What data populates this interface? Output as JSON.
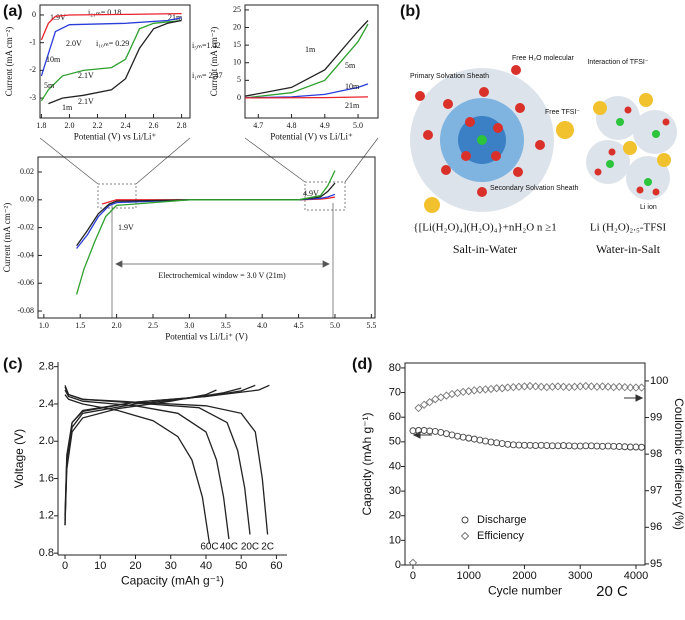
{
  "panel_labels": [
    "(a)",
    "(b)",
    "(c)",
    "(d)"
  ],
  "chart_data": [
    {
      "type": "line",
      "xlabel": "Potential (V) vs Li/Li⁺",
      "ylabel": "Current (mA cm⁻²)",
      "xlim": [
        1.79,
        2.86
      ],
      "ylim": [
        -3.72,
        0.36
      ],
      "xticks": [
        1.8,
        {
          "value": 2,
          "label": "2.0"
        },
        2.2,
        2.4,
        2.6,
        2.8
      ],
      "yticks": [
        0,
        -1,
        -2,
        -3
      ],
      "annotations": [
        "i₂₁ₘ= 0.18",
        "1.9V",
        "2.0V",
        "i₁₀ₘ= 0.29",
        "2.1V",
        "2.1V",
        "i₅ₘ=1.42",
        "i₁ₘ= 2.47"
      ],
      "series": [
        {
          "name": "21m",
          "color": "#e8212a",
          "x": [
            1.8,
            1.85,
            1.9,
            2.0,
            2.4,
            2.8
          ],
          "values": [
            -0.9,
            -0.3,
            -0.05,
            0.0,
            0.02,
            0.05
          ]
        },
        {
          "name": "10m",
          "color": "#2a3cd8",
          "x": [
            1.8,
            1.85,
            1.9,
            2.0,
            2.4,
            2.7,
            2.8
          ],
          "values": [
            -2.2,
            -1.4,
            -0.6,
            -0.35,
            -0.3,
            -0.2,
            -0.1
          ]
        },
        {
          "name": "5m",
          "color": "#2ea02e",
          "x": [
            1.8,
            1.85,
            1.95,
            2.1,
            2.3,
            2.4,
            2.5,
            2.6,
            2.8
          ],
          "values": [
            -3.1,
            -2.7,
            -2.2,
            -2.0,
            -1.9,
            -1.6,
            -0.5,
            -0.3,
            -0.2
          ]
        },
        {
          "name": "1m",
          "color": "#222222",
          "x": [
            1.85,
            1.95,
            2.1,
            2.3,
            2.4,
            2.5,
            2.6,
            2.7,
            2.8
          ],
          "values": [
            -3.2,
            -3.0,
            -2.9,
            -2.7,
            -2.3,
            -1.2,
            -0.5,
            -0.3,
            -0.2
          ]
        }
      ]
    },
    {
      "type": "line",
      "xlabel": "Potential (V) vs Li/Li⁺",
      "ylabel": "Current (mA cm⁻²)",
      "xlim": [
        4.66,
        5.06
      ],
      "ylim": [
        -5.7,
        26.4
      ],
      "xticks": [
        4.7,
        4.8,
        4.9,
        {
          "value": 5,
          "label": "5.0"
        }
      ],
      "yticks": [
        0,
        5,
        10,
        15,
        20,
        25
      ],
      "series": [
        {
          "name": "1m",
          "color": "#222222",
          "x": [
            4.66,
            4.8,
            4.9,
            5.0,
            5.03
          ],
          "values": [
            0.5,
            3,
            8,
            19,
            22
          ]
        },
        {
          "name": "5m",
          "color": "#2ea02e",
          "x": [
            4.66,
            4.8,
            4.9,
            5.0,
            5.03
          ],
          "values": [
            0,
            1.5,
            5,
            16,
            21
          ]
        },
        {
          "name": "10m",
          "color": "#2a3cd8",
          "x": [
            4.66,
            4.8,
            4.9,
            5.0,
            5.03
          ],
          "values": [
            0,
            0.3,
            1,
            3,
            4
          ]
        },
        {
          "name": "21m",
          "color": "#e8212a",
          "x": [
            4.66,
            4.9,
            5.03
          ],
          "values": [
            0,
            0.1,
            0.3
          ]
        }
      ]
    },
    {
      "type": "line",
      "xlabel": "Potential vs Li/Li⁺ (V)",
      "ylabel": "Current (mA cm⁻²)",
      "xlim": [
        0.92,
        5.55
      ],
      "ylim": [
        -0.085,
        0.0308
      ],
      "xticks": [
        {
          "value": 1,
          "label": "1.0"
        },
        1.5,
        {
          "value": 2,
          "label": "2.0"
        },
        2.5,
        {
          "value": 3,
          "label": "3.0"
        },
        3.5,
        {
          "value": 4,
          "label": "4.0"
        },
        4.5,
        {
          "value": 5,
          "label": "5.0"
        },
        5.5
      ],
      "yticks": [
        0.02,
        {
          "value": 0,
          "label": "0.00"
        },
        -0.02,
        -0.04,
        -0.06,
        -0.08
      ],
      "annotations": [
        "1.9V",
        "4.9V",
        "Electrochemical window = 3.0 V (21m)"
      ],
      "series": [
        {
          "color": "#e8212a",
          "x": [
            1.8,
            2.0,
            3,
            4,
            4.5,
            4.8,
            4.9,
            5.0
          ],
          "values": [
            -0.003,
            0,
            0,
            0,
            0,
            0.0005,
            0.001,
            0.002
          ]
        },
        {
          "color": "#2a3cd8",
          "x": [
            1.45,
            1.6,
            1.75,
            1.9,
            2.0,
            3,
            4,
            4.5,
            4.8,
            4.9,
            5.0
          ],
          "values": [
            -0.035,
            -0.025,
            -0.012,
            -0.004,
            -0.002,
            0,
            0,
            0,
            0.001,
            0.002,
            0.004
          ]
        },
        {
          "color": "#222222",
          "x": [
            1.45,
            1.6,
            1.75,
            1.9,
            2.0,
            3,
            4,
            4.5,
            4.8,
            4.9,
            5.0
          ],
          "values": [
            -0.033,
            -0.022,
            -0.01,
            -0.003,
            -0.001,
            0,
            0,
            0,
            0.002,
            0.006,
            0.012
          ]
        },
        {
          "color": "#2ea02e",
          "x": [
            1.45,
            1.55,
            1.7,
            1.85,
            2.0,
            3,
            4,
            4.5,
            4.8,
            4.9,
            5.0
          ],
          "values": [
            -0.068,
            -0.05,
            -0.03,
            -0.012,
            -0.004,
            0,
            0,
            0,
            0.003,
            0.01,
            0.021
          ]
        }
      ]
    },
    {
      "type": "line",
      "xlabel": "Capacity (mAh g⁻¹)",
      "ylabel": "Voltage (V)",
      "xlim": [
        -2,
        63
      ],
      "ylim": [
        0.78,
        2.85
      ],
      "xticks": [
        0,
        10,
        20,
        30,
        40,
        50,
        60
      ],
      "yticks": [
        0.8,
        1.2,
        1.6,
        {
          "value": 2,
          "label": "2.0"
        },
        2.4,
        2.8
      ],
      "series": [
        {
          "name": "60C",
          "color": "#222222",
          "x": [
            0,
            1,
            5,
            15,
            25,
            32,
            36,
            39,
            41
          ],
          "values": [
            2.5,
            2.45,
            2.4,
            2.33,
            2.22,
            2.05,
            1.8,
            1.4,
            0.9
          ]
        },
        {
          "name": "40C",
          "color": "#222222",
          "x": [
            0,
            1,
            5,
            20,
            32,
            40,
            43,
            45,
            46.5
          ],
          "values": [
            2.55,
            2.48,
            2.43,
            2.38,
            2.3,
            2.1,
            1.8,
            1.4,
            0.95
          ]
        },
        {
          "name": "20C",
          "color": "#222222",
          "x": [
            0,
            1,
            5,
            20,
            38,
            46,
            49,
            51,
            52.5
          ],
          "values": [
            2.58,
            2.5,
            2.45,
            2.41,
            2.36,
            2.2,
            1.9,
            1.5,
            1.0
          ]
        },
        {
          "name": "2C",
          "color": "#222222",
          "x": [
            0,
            1,
            5,
            20,
            40,
            50,
            54,
            56,
            57.5
          ],
          "values": [
            2.6,
            2.5,
            2.45,
            2.42,
            2.38,
            2.3,
            2.1,
            1.6,
            1.0
          ]
        },
        {
          "color": "#222222",
          "x": [
            0,
            0.5,
            2,
            5,
            15,
            30,
            40,
            43
          ],
          "values": [
            1.1,
            1.7,
            2.1,
            2.25,
            2.35,
            2.43,
            2.5,
            2.55
          ]
        },
        {
          "color": "#222222",
          "x": [
            0,
            0.5,
            2,
            5,
            20,
            35,
            45,
            50
          ],
          "values": [
            1.15,
            1.8,
            2.15,
            2.3,
            2.4,
            2.46,
            2.52,
            2.57
          ]
        },
        {
          "color": "#222222",
          "x": [
            0,
            0.5,
            2,
            5,
            20,
            40,
            50,
            54
          ],
          "values": [
            1.2,
            1.85,
            2.2,
            2.32,
            2.42,
            2.48,
            2.54,
            2.6
          ]
        },
        {
          "color": "#222222",
          "x": [
            0,
            0.5,
            2,
            5,
            20,
            40,
            55,
            58
          ],
          "values": [
            1.1,
            1.8,
            2.2,
            2.33,
            2.42,
            2.48,
            2.55,
            2.6
          ]
        }
      ]
    },
    {
      "type": "scatter",
      "xlabel": "Cycle number",
      "ylabel": "Capacity (mAh g⁻¹)",
      "y2label": "Coulombic efficiency (%)",
      "xlim": [
        -143,
        4162
      ],
      "ylim": [
        0,
        82
      ],
      "y2lim": [
        94.97,
        100.49
      ],
      "xticks": [
        0,
        1000,
        2000,
        3000,
        4000
      ],
      "yticks": [
        0,
        10,
        20,
        30,
        40,
        50,
        60,
        70,
        80
      ],
      "y2ticks": [
        95,
        96,
        97,
        98,
        99,
        100
      ],
      "annotations": [
        "20 C"
      ],
      "legend": "lower center",
      "x": [
        0,
        100,
        200,
        300,
        400,
        500,
        600,
        700,
        800,
        900,
        1000,
        1100,
        1200,
        1300,
        1400,
        1500,
        1600,
        1700,
        1800,
        1900,
        2000,
        2100,
        2200,
        2300,
        2400,
        2500,
        2600,
        2700,
        2800,
        2900,
        3000,
        3100,
        3200,
        3300,
        3400,
        3500,
        3600,
        3700,
        3800,
        3900,
        4000,
        4100
      ],
      "series": [
        {
          "name": "Discharge",
          "color": "#444444",
          "marker": "circle",
          "values": [
            54.5,
            54.6,
            54.6,
            54.4,
            54.2,
            53.8,
            53.3,
            52.8,
            52.3,
            51.9,
            51.5,
            51.1,
            50.7,
            50.3,
            49.9,
            49.6,
            49.3,
            49.0,
            48.8,
            48.7,
            48.6,
            48.6,
            48.5,
            48.6,
            48.5,
            48.4,
            48.4,
            48.5,
            48.4,
            48.3,
            48.3,
            48.4,
            48.4,
            48.3,
            48.2,
            48.3,
            48.2,
            48.1,
            48.0,
            47.9,
            47.9,
            47.8
          ]
        },
        {
          "name": "Efficiency",
          "color": "#777777",
          "marker": "diamond",
          "axis": "y2",
          "values": [
            95.03,
            99.26,
            99.35,
            99.42,
            99.5,
            99.55,
            99.6,
            99.64,
            99.67,
            99.7,
            99.72,
            99.74,
            99.76,
            99.77,
            99.78,
            99.8,
            99.8,
            99.82,
            99.83,
            99.84,
            99.85,
            99.86,
            99.85,
            99.84,
            99.83,
            99.84,
            99.85,
            99.84,
            99.83,
            99.84,
            99.85,
            99.86,
            99.85,
            99.84,
            99.85,
            99.84,
            99.83,
            99.84,
            99.83,
            99.82,
            99.82,
            99.82
          ]
        }
      ]
    }
  ],
  "diagram": {
    "free_water": "Free H₂O molecular",
    "primary_sheath": "Primary Solvation Sheath",
    "free_tfsi": "Free TFSI⁻",
    "secondary_sheath": "Secondary Solvation Sheath",
    "salt_formula": "{[Li(H₂O)₄](H₂O)₄}+nH₂O n ≥1",
    "salt_title": "Salt-in-Water",
    "interaction": "Interaction of TFSI⁻",
    "li_ion": "Li ion",
    "wis_formula": "Li (H₂O)₂.₅-TFSI",
    "wis_title": "Water-in-Salt"
  }
}
